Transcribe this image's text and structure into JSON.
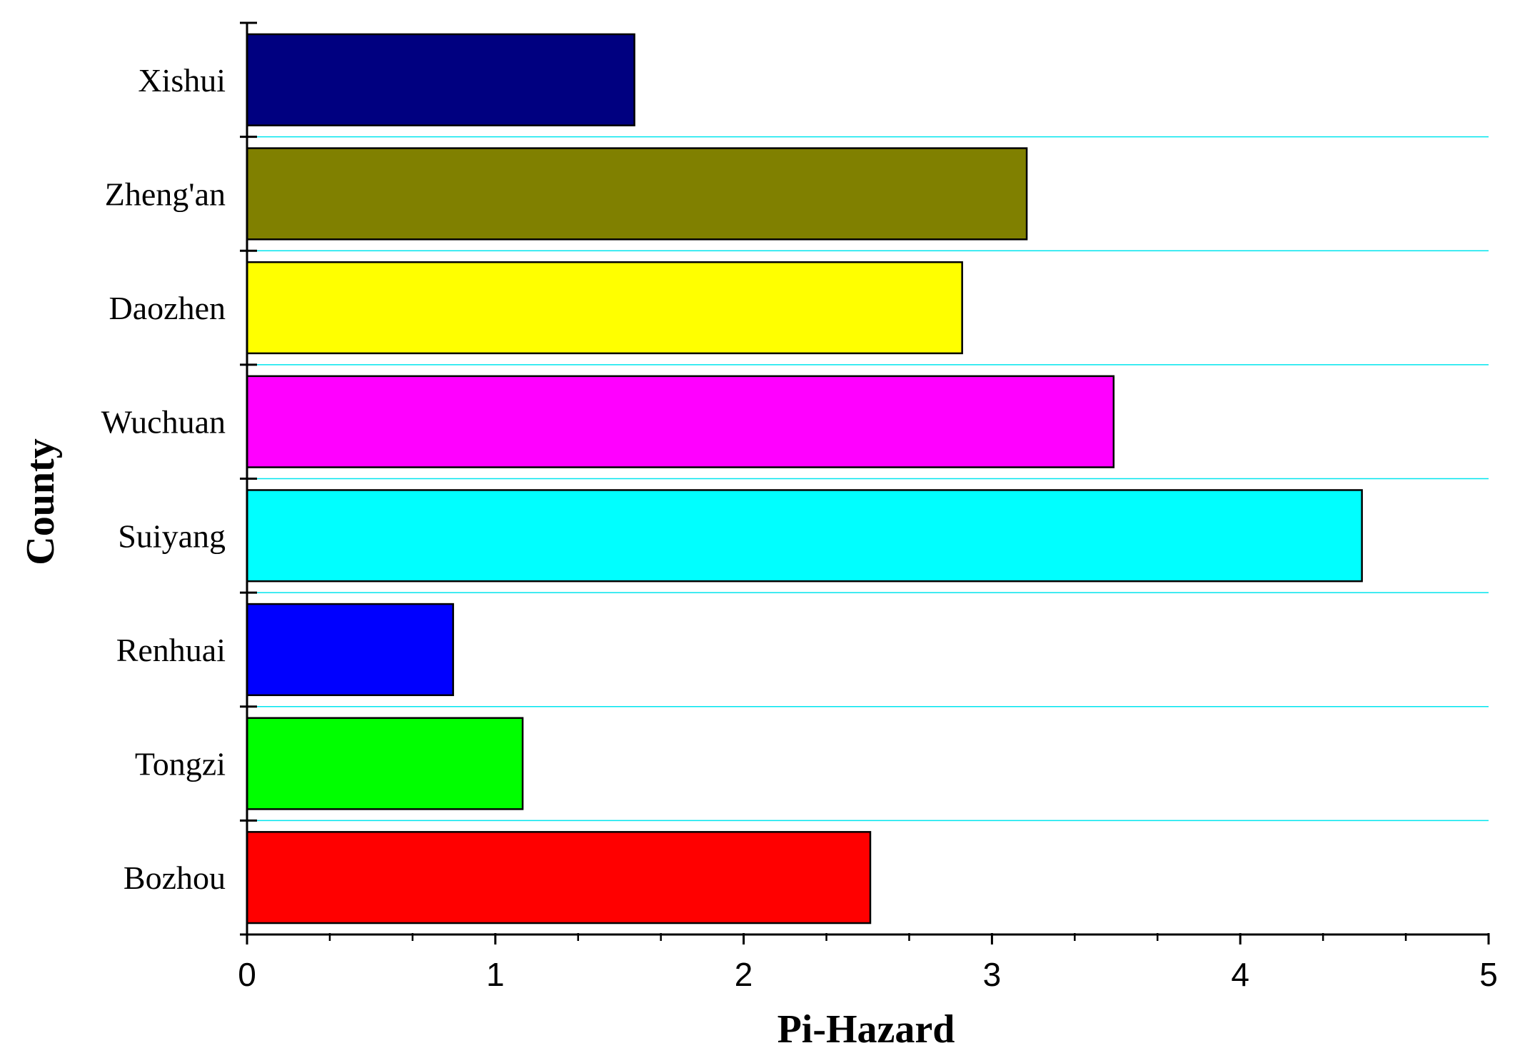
{
  "chart_data": {
    "type": "bar",
    "orientation": "horizontal",
    "categories": [
      "Xishui",
      "Zheng'an",
      "Daozhen",
      "Wuchuan",
      "Suiyang",
      "Renhuai",
      "Tongzi",
      "Bozhou"
    ],
    "values": [
      1.56,
      3.14,
      2.88,
      3.49,
      4.49,
      0.83,
      1.11,
      2.51
    ],
    "colors": [
      "#000080",
      "#808000",
      "#ffff00",
      "#ff00ff",
      "#00ffff",
      "#0000ff",
      "#00ff00",
      "#ff0000"
    ],
    "xlabel": "Pi-Hazard",
    "ylabel": "County",
    "xlim": [
      0,
      5
    ],
    "xticks": [
      "0",
      "1",
      "2",
      "3",
      "4",
      "5"
    ],
    "grid": "horizontal",
    "grid_color": "#00e5ee",
    "legend": "none"
  }
}
